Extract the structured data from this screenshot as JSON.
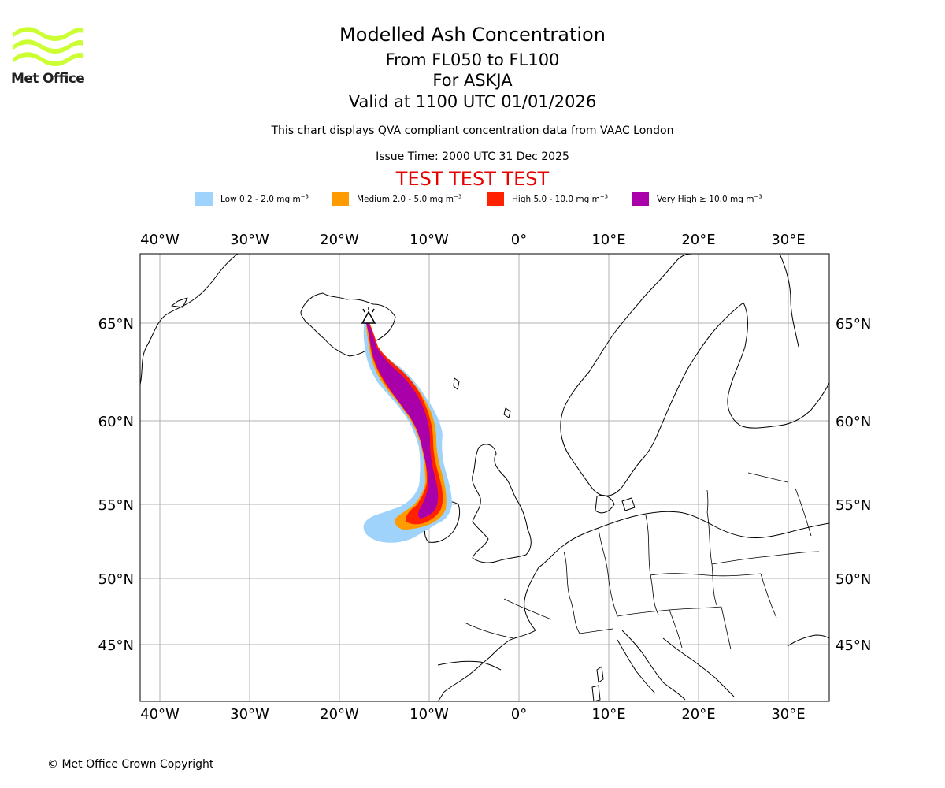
{
  "brand": {
    "name": "Met Office",
    "accent": "#ccff33"
  },
  "header": {
    "title": "Modelled Ash Concentration",
    "levels": "From FL050 to FL100",
    "volcano": "For ASKJA",
    "valid": "Valid at 1100 UTC 01/01/2026",
    "compliance": "This chart displays QVA compliant concentration data from VAAC London",
    "issue": "Issue Time: 2000 UTC 31 Dec 2025",
    "test_banner": "TEST TEST TEST"
  },
  "legend": [
    {
      "text": "Low 0.2 - 2.0 mg m",
      "unit_exp": "−3",
      "color": "#9fd3fb"
    },
    {
      "text": "Medium 2.0 - 5.0 mg m",
      "unit_exp": "−3",
      "color": "#ff9a00"
    },
    {
      "text": "High 5.0 - 10.0 mg m",
      "unit_exp": "−3",
      "color": "#ff2200"
    },
    {
      "text": "Very High  ≥  10.0 mg m",
      "unit_exp": "−3",
      "color": "#aa00aa"
    }
  ],
  "axes": {
    "lon_labels": [
      "40°W",
      "30°W",
      "20°W",
      "10°W",
      "0°",
      "10°E",
      "20°E",
      "30°E"
    ],
    "lat_labels": [
      "65°N",
      "60°N",
      "55°N",
      "50°N",
      "45°N"
    ]
  },
  "footer": {
    "copyright": "© Met Office Crown Copyright"
  },
  "colors": {
    "grid": "#b0b0b0",
    "coast": "#000000",
    "title_test": "#e60000"
  }
}
